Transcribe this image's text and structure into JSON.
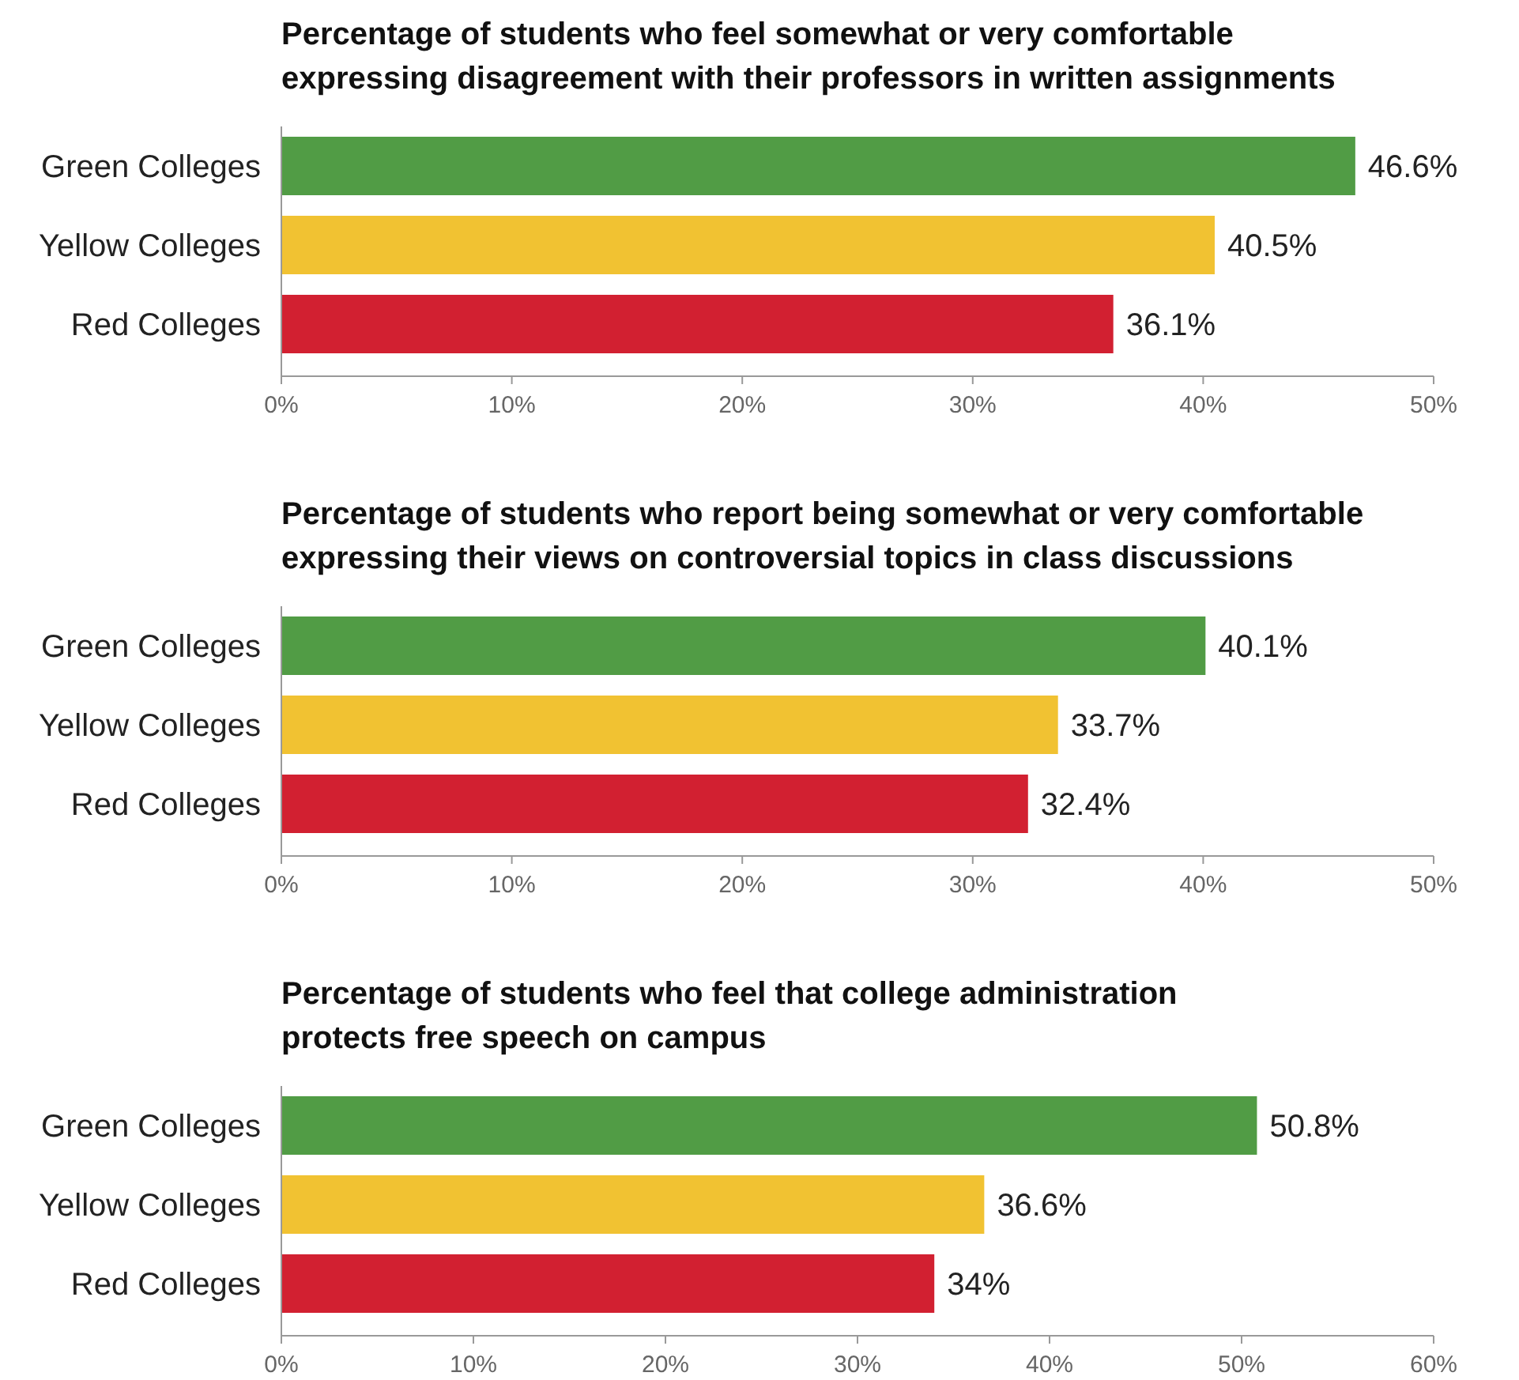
{
  "chart_data": [
    {
      "type": "bar",
      "orientation": "horizontal",
      "title": "Percentage of students who feel somewhat or very comfortable\nexpressing disagreement with their professors in written assignments",
      "categories": [
        "Green Colleges",
        "Yellow Colleges",
        "Red Colleges"
      ],
      "values": [
        46.6,
        40.5,
        36.1
      ],
      "colors": [
        "#519c45",
        "#f1c232",
        "#d22031"
      ],
      "value_labels": [
        "46.6%",
        "40.5%",
        "36.1%"
      ],
      "xlim": [
        0,
        50
      ],
      "xticks": [
        {
          "value": 0,
          "label": "0%"
        },
        {
          "value": 10,
          "label": "10%"
        },
        {
          "value": 20,
          "label": "20%"
        },
        {
          "value": 30,
          "label": "30%"
        },
        {
          "value": 40,
          "label": "40%"
        },
        {
          "value": 50,
          "label": "50%"
        }
      ],
      "grid": false
    },
    {
      "type": "bar",
      "orientation": "horizontal",
      "title": "Percentage of students who report being somewhat or very comfortable\nexpressing their views on controversial topics in class discussions",
      "categories": [
        "Green Colleges",
        "Yellow Colleges",
        "Red Colleges"
      ],
      "values": [
        40.1,
        33.7,
        32.4
      ],
      "colors": [
        "#519c45",
        "#f1c232",
        "#d22031"
      ],
      "value_labels": [
        "40.1%",
        "33.7%",
        "32.4%"
      ],
      "xlim": [
        0,
        50
      ],
      "xticks": [
        {
          "value": 0,
          "label": "0%"
        },
        {
          "value": 10,
          "label": "10%"
        },
        {
          "value": 20,
          "label": "20%"
        },
        {
          "value": 30,
          "label": "30%"
        },
        {
          "value": 40,
          "label": "40%"
        },
        {
          "value": 50,
          "label": "50%"
        }
      ],
      "grid": false
    },
    {
      "type": "bar",
      "orientation": "horizontal",
      "title": "Percentage of students who feel that college administration\nprotects free speech on campus",
      "categories": [
        "Green Colleges",
        "Yellow Colleges",
        "Red Colleges"
      ],
      "values": [
        50.8,
        36.6,
        34
      ],
      "colors": [
        "#519c45",
        "#f1c232",
        "#d22031"
      ],
      "value_labels": [
        "50.8%",
        "36.6%",
        "34%"
      ],
      "xlim": [
        0,
        60
      ],
      "xticks": [
        {
          "value": 0,
          "label": "0%"
        },
        {
          "value": 10,
          "label": "10%"
        },
        {
          "value": 20,
          "label": "20%"
        },
        {
          "value": 30,
          "label": "30%"
        },
        {
          "value": 40,
          "label": "40%"
        },
        {
          "value": 50,
          "label": "50%"
        },
        {
          "value": 60,
          "label": "60%"
        }
      ],
      "grid": false
    }
  ]
}
